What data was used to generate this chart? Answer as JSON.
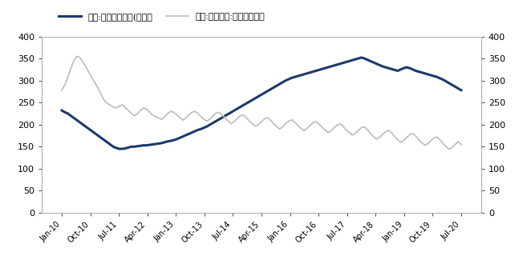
{
  "legend1": "美国:新建住房待售(千套）",
  "legend2": "美国:成屋销售:库存（万套）",
  "line1_color": "#1B3A6B",
  "line2_color": "#C0C0C0",
  "ylim": [
    0,
    400
  ],
  "yticks": [
    0,
    50,
    100,
    150,
    200,
    250,
    300,
    350,
    400
  ],
  "background_color": "#FFFFFF",
  "xtick_labels": [
    "Jan-10",
    "Oct-10",
    "Jul-11",
    "Apr-12",
    "Jan-13",
    "Oct-13",
    "Jul-14",
    "Apr-15",
    "Jan-16",
    "Oct-16",
    "Jul-17",
    "Apr-18",
    "Jan-19",
    "Oct-19",
    "Jul-20"
  ],
  "line1_values": [
    232,
    228,
    225,
    220,
    215,
    210,
    205,
    200,
    195,
    190,
    185,
    180,
    175,
    170,
    165,
    160,
    155,
    150,
    147,
    145,
    145,
    146,
    148,
    150,
    150,
    151,
    152,
    153,
    153,
    154,
    155,
    156,
    157,
    158,
    160,
    162,
    163,
    165,
    167,
    170,
    173,
    176,
    179,
    182,
    185,
    188,
    190,
    193,
    196,
    200,
    204,
    208,
    212,
    216,
    220,
    224,
    228,
    232,
    236,
    240,
    244,
    248,
    252,
    256,
    260,
    264,
    268,
    272,
    276,
    280,
    284,
    288,
    292,
    296,
    300,
    303,
    306,
    308,
    310,
    312,
    314,
    316,
    318,
    320,
    322,
    324,
    326,
    328,
    330,
    332,
    334,
    336,
    338,
    340,
    342,
    344,
    346,
    348,
    350,
    352,
    350,
    347,
    344,
    341,
    338,
    335,
    332,
    330,
    328,
    326,
    324,
    322,
    325,
    328,
    330,
    328,
    325,
    322,
    320,
    318,
    316,
    314,
    312,
    310,
    308,
    305,
    302,
    298,
    294,
    290,
    286,
    282,
    278
  ],
  "line2_values": [
    278,
    290,
    308,
    328,
    345,
    355,
    352,
    342,
    330,
    318,
    306,
    294,
    282,
    268,
    255,
    248,
    244,
    240,
    238,
    242,
    245,
    238,
    232,
    225,
    220,
    225,
    232,
    238,
    235,
    228,
    222,
    218,
    215,
    212,
    218,
    225,
    230,
    228,
    222,
    216,
    210,
    215,
    222,
    228,
    230,
    225,
    218,
    212,
    208,
    213,
    220,
    226,
    228,
    222,
    215,
    208,
    202,
    207,
    214,
    220,
    222,
    216,
    208,
    202,
    196,
    200,
    207,
    213,
    216,
    210,
    202,
    196,
    190,
    195,
    202,
    208,
    211,
    205,
    198,
    192,
    186,
    191,
    198,
    204,
    207,
    201,
    194,
    188,
    182,
    186,
    193,
    199,
    202,
    196,
    188,
    182,
    176,
    180,
    187,
    193,
    195,
    188,
    180,
    173,
    167,
    171,
    178,
    184,
    187,
    181,
    173,
    166,
    160,
    164,
    171,
    177,
    180,
    174,
    166,
    159,
    153,
    157,
    164,
    170,
    172,
    165,
    157,
    150,
    144,
    148,
    155,
    161,
    155
  ]
}
